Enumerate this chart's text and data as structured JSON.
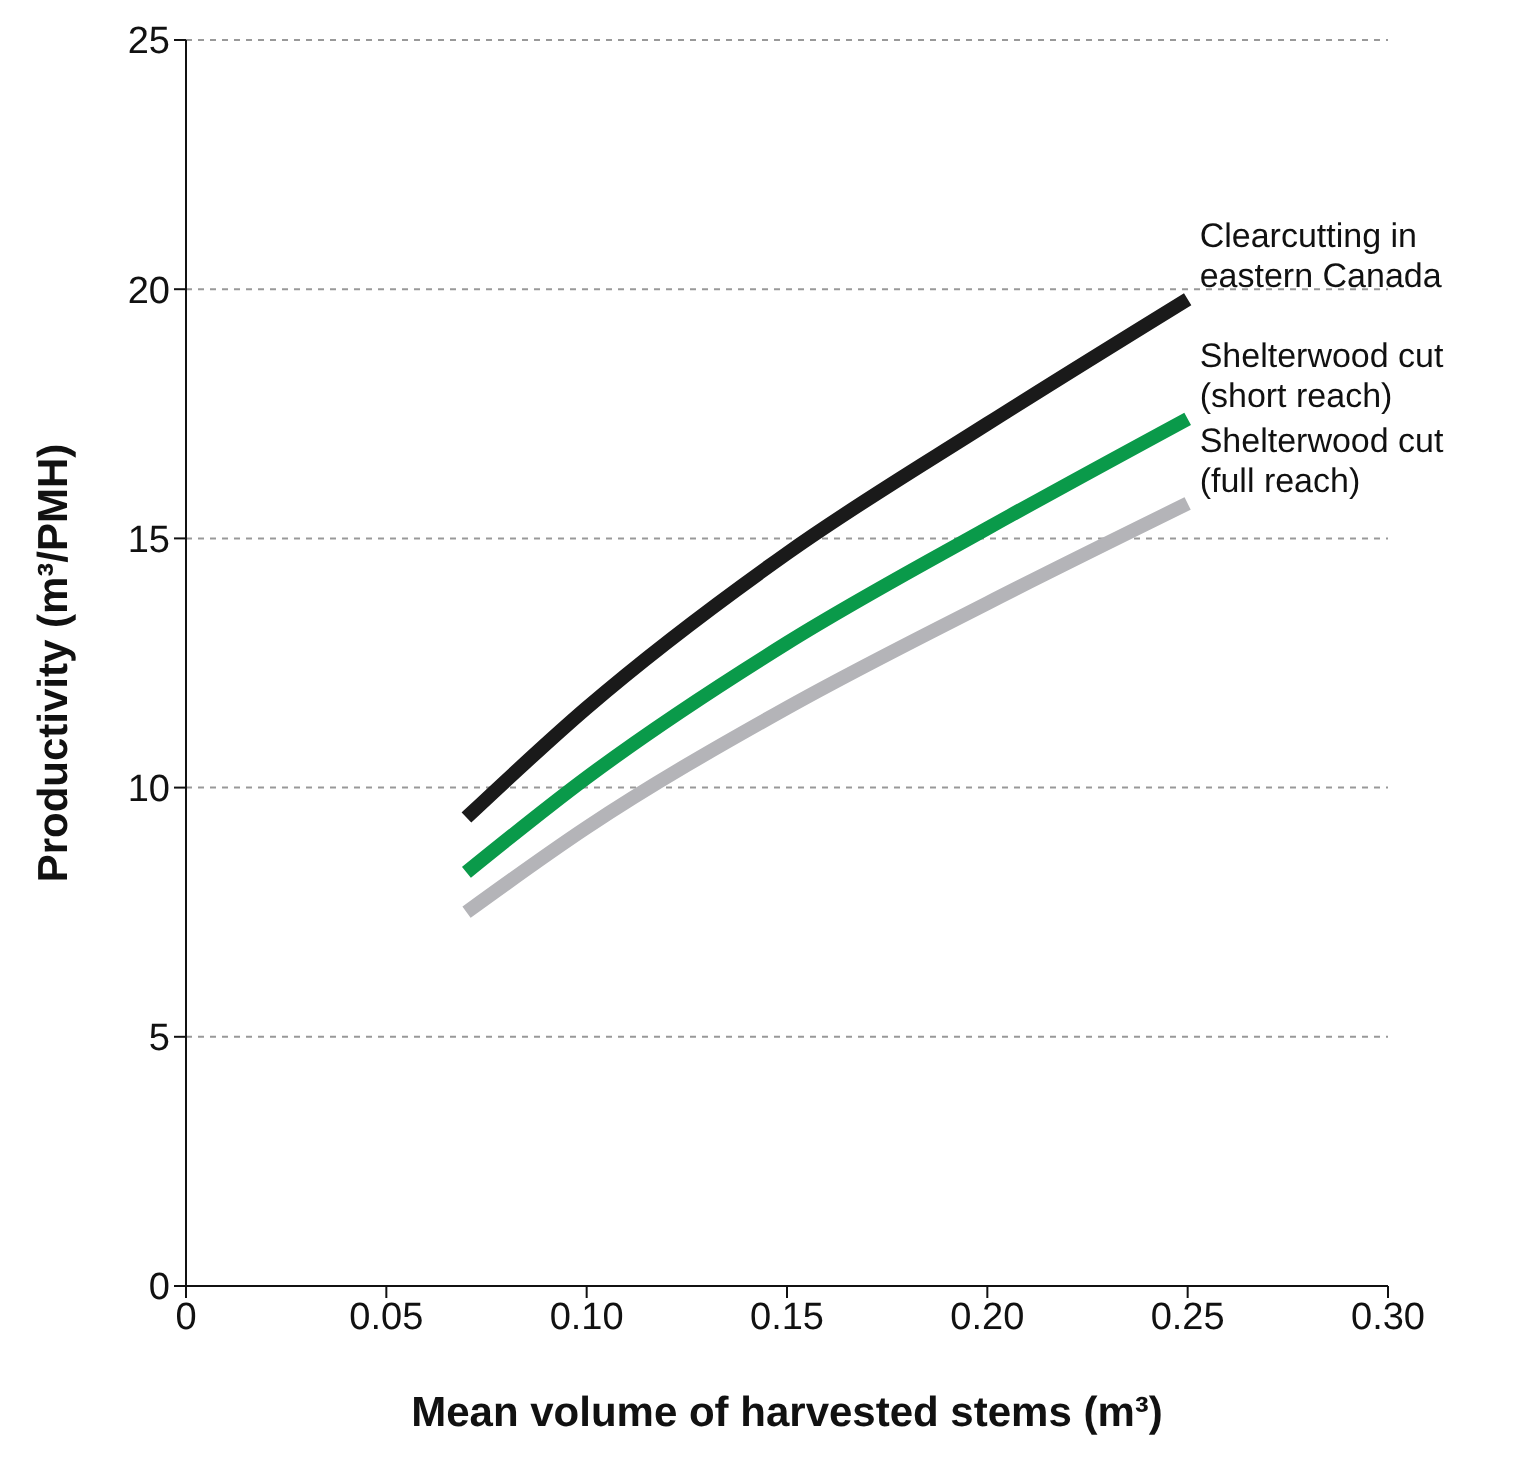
{
  "chart_data": {
    "type": "line",
    "xlabel": "Mean volume of harvested stems (m³)",
    "ylabel": "Productivity (m³/PMH)",
    "x": [
      0.07,
      0.1,
      0.15,
      0.2,
      0.25
    ],
    "series": [
      {
        "name": "Clearcutting in eastern Canada",
        "color": "#1a1a1a",
        "values": [
          9.4,
          11.6,
          14.7,
          17.3,
          19.8
        ]
      },
      {
        "name": "Shelterwood cut (short reach)",
        "color": "#0a9a4a",
        "values": [
          8.3,
          10.2,
          12.9,
          15.2,
          17.4
        ]
      },
      {
        "name": "Shelterwood cut (full reach)",
        "color": "#b4b4b8",
        "values": [
          7.5,
          9.2,
          11.6,
          13.7,
          15.7
        ]
      }
    ],
    "xlim": [
      0,
      0.3
    ],
    "xticks": [
      0,
      {
        "value": 0.05,
        "label": "0.05"
      },
      {
        "value": 0.1,
        "label": "0.10"
      },
      {
        "value": 0.15,
        "label": "0.15"
      },
      {
        "value": 0.2,
        "label": "0.20"
      },
      {
        "value": 0.25,
        "label": "0.25"
      },
      {
        "value": 0.3,
        "label": "0.30"
      }
    ],
    "ylim": [
      0,
      25
    ],
    "yticks": [
      0,
      5,
      10,
      15,
      20,
      25
    ],
    "grid": "y",
    "marker": "none",
    "line_style": "solid"
  }
}
